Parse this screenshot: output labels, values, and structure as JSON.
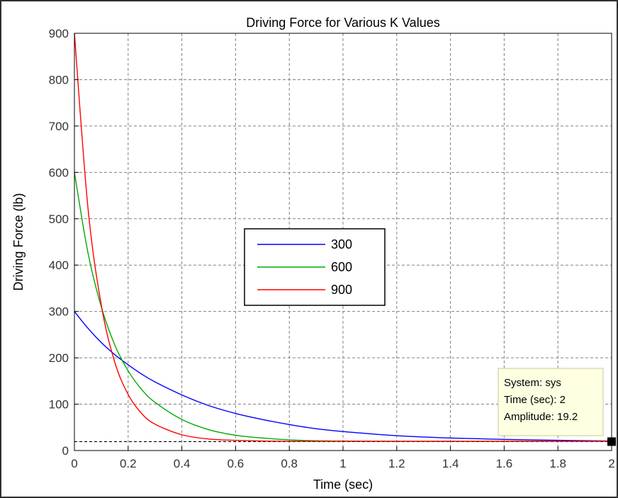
{
  "chart_data": {
    "type": "line",
    "title": "Driving Force for Various K Values",
    "xlabel": "Time (sec)",
    "ylabel": "Driving Force (lb)",
    "xlim": [
      0,
      2
    ],
    "ylim": [
      0,
      900
    ],
    "x_ticks": [
      0,
      0.2,
      0.4,
      0.6,
      0.8,
      1,
      1.2,
      1.4,
      1.6,
      1.8,
      2
    ],
    "x_tick_labels": [
      "0",
      "0.2",
      "0.4",
      "0.6",
      "0.8",
      "1",
      "1.2",
      "1.4",
      "1.6",
      "1.8",
      "2"
    ],
    "y_ticks": [
      0,
      100,
      200,
      300,
      400,
      500,
      600,
      700,
      800,
      900
    ],
    "y_tick_labels": [
      "0",
      "100",
      "200",
      "300",
      "400",
      "500",
      "600",
      "700",
      "800",
      "900"
    ],
    "grid": true,
    "legend_position": "center",
    "x": [
      0,
      0.05,
      0.1,
      0.15,
      0.2,
      0.25,
      0.3,
      0.4,
      0.5,
      0.6,
      0.7,
      0.8,
      0.9,
      1.0,
      1.2,
      1.4,
      1.6,
      1.8,
      2.0
    ],
    "series": [
      {
        "name": "300",
        "color": "#0000ff",
        "values": [
          300,
          264,
          233,
          207,
          185,
          165,
          148,
          120,
          97,
          80,
          67,
          56,
          47,
          41,
          32,
          27,
          24,
          22,
          20.5
        ]
      },
      {
        "name": "600",
        "color": "#00aa00",
        "values": [
          600,
          428,
          310,
          228,
          172,
          132,
          104,
          67,
          45,
          33,
          27,
          23,
          21,
          20.5,
          20,
          20,
          20,
          20,
          20
        ]
      },
      {
        "name": "900",
        "color": "#ff0000",
        "values": [
          900,
          526,
          314,
          191,
          121,
          80,
          57,
          34,
          25,
          22,
          20.5,
          20,
          20,
          20,
          20,
          20,
          20,
          20,
          20
        ]
      }
    ],
    "reference_line": {
      "y": 19.2,
      "style": "dashed",
      "color": "#000000"
    },
    "datatip": {
      "x": 2,
      "y": 19.2,
      "lines": [
        "System: sys",
        "Time (sec): 2",
        "Amplitude: 19.2"
      ]
    }
  }
}
